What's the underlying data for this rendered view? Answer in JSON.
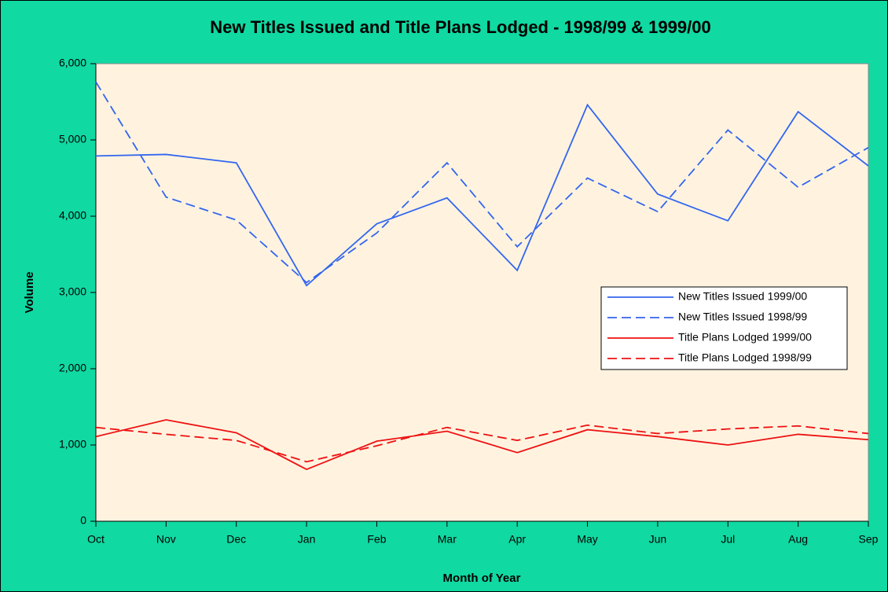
{
  "chart_data": {
    "type": "line",
    "title": "New Titles Issued and Title Plans Lodged - 1998/99 & 1999/00",
    "x_label": "Month of Year",
    "y_label": "Volume",
    "categories": [
      "Oct",
      "Nov",
      "Dec",
      "Jan",
      "Feb",
      "Mar",
      "Apr",
      "May",
      "Jun",
      "Jul",
      "Aug",
      "Sep"
    ],
    "series": [
      {
        "name": "New Titles Issued 1999/00",
        "color": "#3366ee",
        "style": "solid",
        "values": [
          4790,
          4810,
          4700,
          3090,
          3900,
          4240,
          3290,
          5460,
          4290,
          3940,
          5370,
          4660
        ]
      },
      {
        "name": "New Titles Issued 1998/99",
        "color": "#3366ee",
        "style": "dashed",
        "values": [
          5760,
          4250,
          3950,
          3130,
          3780,
          4700,
          3600,
          4500,
          4060,
          5130,
          4380,
          4900
        ]
      },
      {
        "name": "Title Plans Lodged 1999/00",
        "color": "#ee1111",
        "style": "solid",
        "values": [
          1110,
          1330,
          1160,
          680,
          1050,
          1180,
          900,
          1200,
          1110,
          1000,
          1140,
          1070
        ]
      },
      {
        "name": "Title Plans Lodged 1998/99",
        "color": "#ee1111",
        "style": "dashed",
        "values": [
          1230,
          1140,
          1060,
          780,
          990,
          1230,
          1060,
          1260,
          1150,
          1210,
          1250,
          1150
        ]
      }
    ],
    "ylim": [
      0,
      6000
    ],
    "yticks": [
      0,
      {
        "value": 1000,
        "label": "1,000"
      },
      {
        "value": 2000,
        "label": "2,000"
      },
      {
        "value": 3000,
        "label": "3,000"
      },
      {
        "value": 4000,
        "label": "4,000"
      },
      {
        "value": 5000,
        "label": "5,000"
      },
      {
        "value": 6000,
        "label": "6,000"
      }
    ],
    "grid": false,
    "legend": "right"
  }
}
